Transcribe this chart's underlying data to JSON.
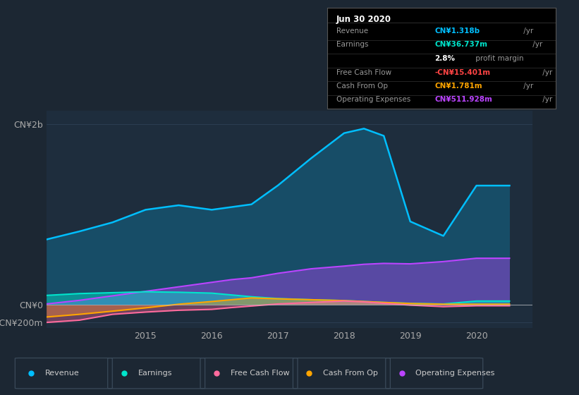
{
  "background_color": "#1c2733",
  "chart_bg": "#1e2d3d",
  "info_box": {
    "date": "Jun 30 2020",
    "rows": [
      {
        "label": "Revenue",
        "value": "CN¥1.318b",
        "suffix": " /yr",
        "color": "#00bfff"
      },
      {
        "label": "Earnings",
        "value": "CN¥36.737m",
        "suffix": " /yr",
        "color": "#00e5cc"
      },
      {
        "label": "",
        "value": "2.8%",
        "suffix": " profit margin",
        "color": "#ffffff"
      },
      {
        "label": "Free Cash Flow",
        "value": "-CN¥15.401m",
        "suffix": " /yr",
        "color": "#ff4444"
      },
      {
        "label": "Cash From Op",
        "value": "CN¥1.781m",
        "suffix": " /yr",
        "color": "#ffa500"
      },
      {
        "label": "Operating Expenses",
        "value": "CN¥511.928m",
        "suffix": " /yr",
        "color": "#bb44ff"
      }
    ]
  },
  "series": {
    "years": [
      2013.5,
      2014.0,
      2014.5,
      2015.0,
      2015.5,
      2016.0,
      2016.3,
      2016.6,
      2017.0,
      2017.5,
      2018.0,
      2018.3,
      2018.6,
      2019.0,
      2019.5,
      2020.0,
      2020.5
    ],
    "revenue": [
      720,
      810,
      910,
      1050,
      1100,
      1050,
      1080,
      1110,
      1320,
      1620,
      1900,
      1950,
      1870,
      920,
      760,
      1318,
      1318
    ],
    "earnings": [
      100,
      120,
      130,
      140,
      135,
      125,
      105,
      85,
      65,
      52,
      42,
      32,
      22,
      12,
      5,
      37,
      37
    ],
    "free_cash_flow": [
      -200,
      -175,
      -110,
      -85,
      -65,
      -55,
      -35,
      -18,
      5,
      22,
      38,
      28,
      12,
      -8,
      -25,
      -15,
      -15
    ],
    "cash_from_op": [
      -140,
      -110,
      -75,
      -38,
      2,
      32,
      52,
      72,
      62,
      52,
      42,
      32,
      22,
      10,
      2,
      2,
      2
    ],
    "operating_expenses": [
      5,
      45,
      95,
      145,
      195,
      245,
      275,
      295,
      345,
      395,
      425,
      445,
      455,
      450,
      475,
      512,
      512
    ]
  },
  "ylim": [
    -260,
    2150
  ],
  "yticks": [
    -200,
    0,
    2000
  ],
  "ytick_labels": [
    "-CN¥200m",
    "CN¥0",
    "CN¥2b"
  ],
  "xlim": [
    2013.5,
    2020.85
  ],
  "xticks": [
    2015,
    2016,
    2017,
    2018,
    2019,
    2020
  ],
  "colors": {
    "revenue": "#00bfff",
    "earnings": "#00e5cc",
    "free_cash_flow": "#ff6b9d",
    "cash_from_op": "#ffa500",
    "operating_expenses": "#bb44ff"
  },
  "legend_items": [
    {
      "label": "Revenue",
      "color": "#00bfff"
    },
    {
      "label": "Earnings",
      "color": "#00e5cc"
    },
    {
      "label": "Free Cash Flow",
      "color": "#ff6b9d"
    },
    {
      "label": "Cash From Op",
      "color": "#ffa500"
    },
    {
      "label": "Operating Expenses",
      "color": "#bb44ff"
    }
  ]
}
